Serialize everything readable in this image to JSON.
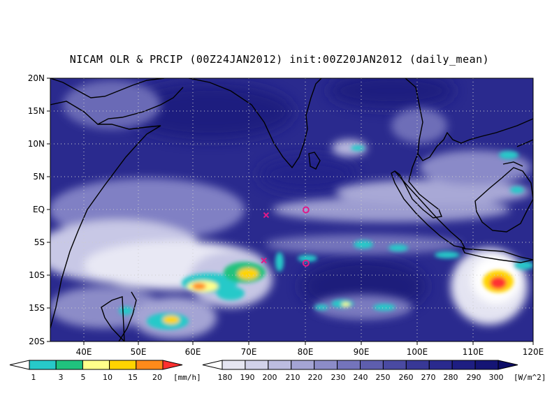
{
  "title": "NICAM OLR & PRCIP (00Z24JAN2012) init:00Z20JAN2012 (daily_mean)",
  "map": {
    "lat_labels": [
      "20N",
      "15N",
      "10N",
      "5N",
      "EQ",
      "5S",
      "10S",
      "15S",
      "20S"
    ],
    "lon_labels": [
      "40E",
      "50E",
      "60E",
      "70E",
      "80E",
      "90E",
      "100E",
      "110E",
      "120E"
    ],
    "lon_range": [
      35,
      120
    ],
    "lat_range": [
      -20,
      20
    ],
    "ocean_color": "#2a2a8e",
    "land_outline_color": "#000000",
    "gridlines": "dotted"
  },
  "markers": [
    {
      "type": "x",
      "lon": 73,
      "lat": -0.8,
      "color": "#e01a8a"
    },
    {
      "type": "x",
      "lon": 72.6,
      "lat": -7.7,
      "color": "#e01a8a"
    },
    {
      "type": "circle",
      "lon": 80,
      "lat": 0,
      "color": "#e01a8a"
    },
    {
      "type": "circle",
      "lon": 80,
      "lat": -8.1,
      "color": "#e01a8a"
    }
  ],
  "precip_colorbar": {
    "labels": [
      "1",
      "3",
      "5",
      "10",
      "15",
      "20"
    ],
    "unit": "[mm/h]",
    "colors": [
      "#ffffff",
      "#27c9c9",
      "#20c27e",
      "#ffff8a",
      "#ffd400",
      "#ff8a1a",
      "#ff3030"
    ]
  },
  "olr_colorbar": {
    "labels": [
      "180",
      "190",
      "200",
      "210",
      "220",
      "230",
      "240",
      "250",
      "260",
      "270",
      "280",
      "290",
      "300"
    ],
    "unit": "[W/m^2]",
    "colors": [
      "#ffffff",
      "#e6e6f2",
      "#d2d2ea",
      "#bcbce0",
      "#a4a4d4",
      "#8c8cc8",
      "#7474bc",
      "#5e5eae",
      "#4a4aa2",
      "#383896",
      "#2a2a8e",
      "#1e1e82",
      "#151575",
      "#0c0c66"
    ]
  }
}
